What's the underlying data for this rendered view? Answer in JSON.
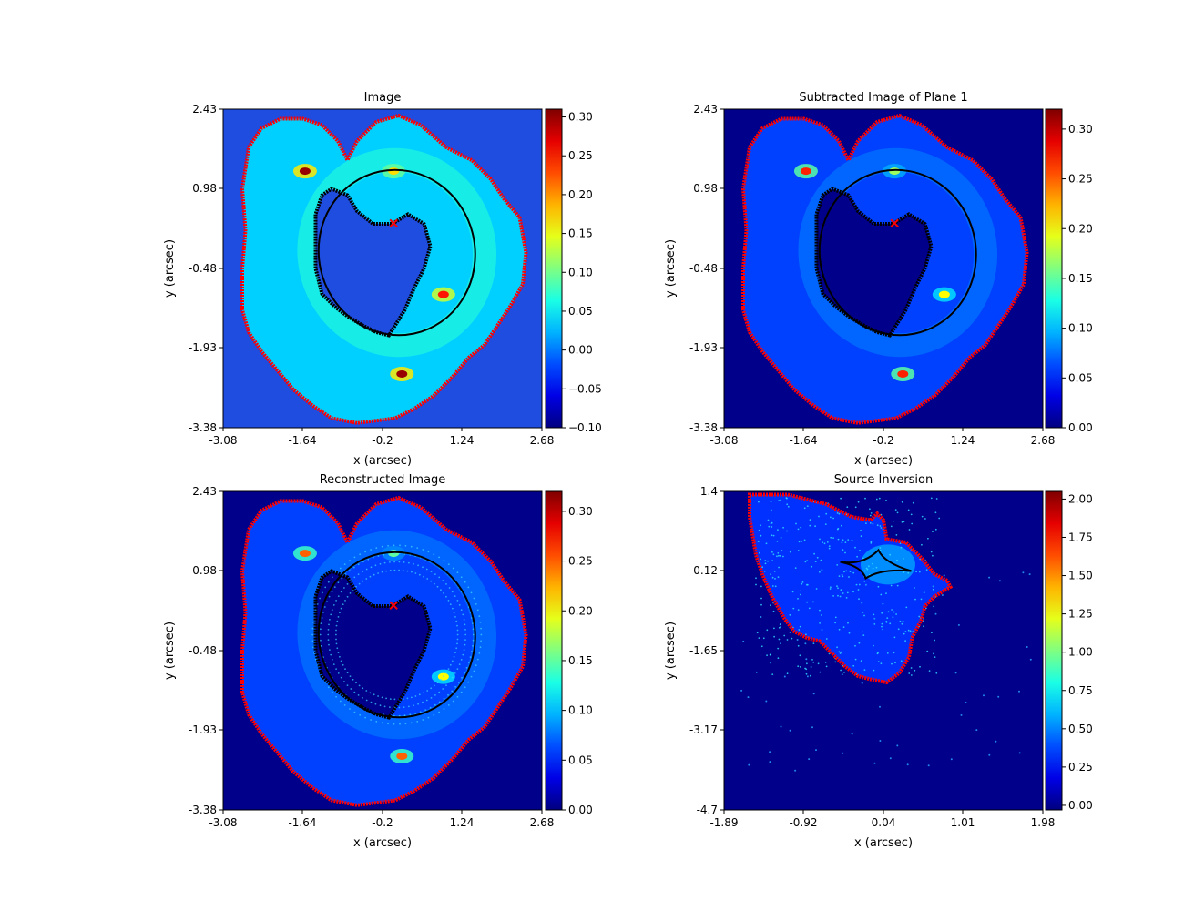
{
  "chart_data": [
    {
      "type": "heatmap",
      "title": "Image",
      "xlabel": "x (arcsec)",
      "ylabel": "y (arcsec)",
      "xlim": [
        -3.08,
        2.68
      ],
      "ylim": [
        -3.38,
        2.43
      ],
      "x_ticks": [
        "-3.08",
        "-1.64",
        "-0.2",
        "1.24",
        "2.68"
      ],
      "y_ticks": [
        "2.43",
        "0.98",
        "-0.48",
        "-1.93",
        "-3.38"
      ],
      "colorbar": {
        "min": -0.1,
        "max": 0.31,
        "ticks": [
          "0.30",
          "0.25",
          "0.20",
          "0.15",
          "0.10",
          "0.05",
          "0.00",
          "−0.05",
          "−0.10"
        ]
      },
      "background_color": "#1f4de0",
      "border_color": "#ff0000",
      "critical_curve_color": "#000000",
      "centre_marker": {
        "x": 0,
        "y": 0.35,
        "color": "#ff0000"
      },
      "bright_spots": [
        {
          "x": -1.6,
          "y": 1.3,
          "level": 0.3
        },
        {
          "x": 0.0,
          "y": 1.3,
          "level": 0.17
        },
        {
          "x": 0.9,
          "y": -0.95,
          "level": 0.25
        },
        {
          "x": 0.15,
          "y": -2.4,
          "level": 0.3
        }
      ]
    },
    {
      "type": "heatmap",
      "title": "Subtracted Image of Plane 1",
      "xlabel": "x (arcsec)",
      "ylabel": "y (arcsec)",
      "xlim": [
        -3.08,
        2.68
      ],
      "ylim": [
        -3.38,
        2.43
      ],
      "x_ticks": [
        "-3.08",
        "-1.64",
        "-0.2",
        "1.24",
        "2.68"
      ],
      "y_ticks": [
        "2.43",
        "0.98",
        "-0.48",
        "-1.93",
        "-3.38"
      ],
      "colorbar": {
        "min": 0,
        "max": 0.32,
        "ticks": [
          "0.30",
          "0.25",
          "0.20",
          "0.15",
          "0.10",
          "0.05",
          "0.00"
        ]
      },
      "background_color": "#00008b",
      "border_color": "#ff0000",
      "critical_curve_color": "#000000",
      "centre_marker": {
        "x": 0,
        "y": 0.35,
        "color": "#ff0000"
      },
      "bright_spots": [
        {
          "x": -1.6,
          "y": 1.3,
          "level": 0.27
        },
        {
          "x": 0.0,
          "y": 1.3,
          "level": 0.17
        },
        {
          "x": 0.9,
          "y": -0.95,
          "level": 0.2
        },
        {
          "x": 0.15,
          "y": -2.4,
          "level": 0.27
        }
      ]
    },
    {
      "type": "heatmap",
      "title": "Reconstructed Image",
      "xlabel": "x (arcsec)",
      "ylabel": "y (arcsec)",
      "xlim": [
        -3.08,
        2.68
      ],
      "ylim": [
        -3.38,
        2.43
      ],
      "x_ticks": [
        "-3.08",
        "-1.64",
        "-0.2",
        "1.24",
        "2.68"
      ],
      "y_ticks": [
        "2.43",
        "0.98",
        "-0.48",
        "-1.93",
        "-3.38"
      ],
      "colorbar": {
        "min": 0,
        "max": 0.32,
        "ticks": [
          "0.30",
          "0.25",
          "0.20",
          "0.15",
          "0.10",
          "0.05",
          "0.00"
        ]
      },
      "background_color": "#00008b",
      "border_color": "#ff0000",
      "critical_curve_color": "#000000",
      "centre_marker": {
        "x": 0,
        "y": 0.35,
        "color": "#ff0000"
      },
      "bright_spots": [
        {
          "x": -1.6,
          "y": 1.3,
          "level": 0.25
        },
        {
          "x": 0.0,
          "y": 1.3,
          "level": 0.15
        },
        {
          "x": 0.9,
          "y": -0.95,
          "level": 0.2
        },
        {
          "x": 0.15,
          "y": -2.4,
          "level": 0.25
        }
      ]
    },
    {
      "type": "heatmap",
      "title": "Source Inversion",
      "xlabel": "x (arcsec)",
      "ylabel": "y (arcsec)",
      "xlim": [
        -1.89,
        1.98
      ],
      "ylim": [
        -4.7,
        1.4
      ],
      "x_ticks": [
        "-1.89",
        "-0.92",
        "0.04",
        "1.01",
        "1.98"
      ],
      "y_ticks": [
        "1.4",
        "-0.12",
        "-1.65",
        "-3.17",
        "-4.7"
      ],
      "colorbar": {
        "min": -0.03,
        "max": 2.05,
        "ticks": [
          "2.00",
          "1.75",
          "1.50",
          "1.25",
          "1.00",
          "0.75",
          "0.50",
          "0.25",
          "0.00"
        ]
      },
      "background_color": "#00008b",
      "border_color": "#ff0000",
      "caustic_color": "#000000",
      "bright_spots": [
        {
          "x": 0.1,
          "y": 0.0,
          "level": 0.6
        }
      ]
    }
  ]
}
